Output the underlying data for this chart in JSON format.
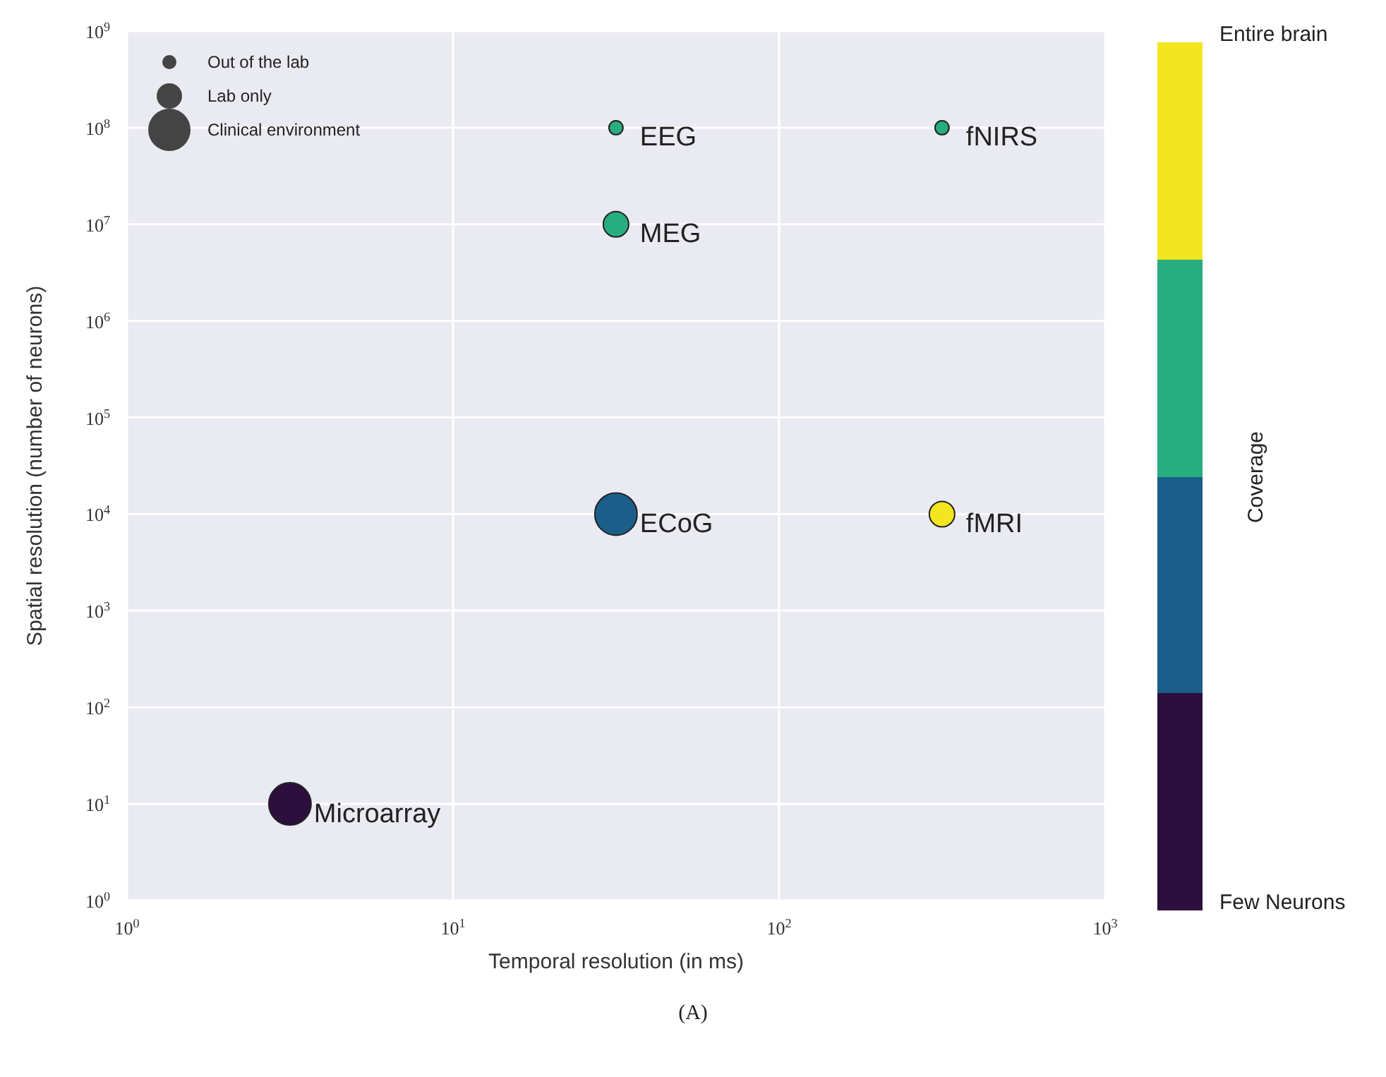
{
  "chart_data": {
    "type": "bubble",
    "xlabel": "Temporal resolution (in ms)",
    "ylabel": "Spatial resolution (number of neurons)",
    "clabel": "Coverage",
    "x": [
      3.16,
      31.6,
      31.6,
      31.6,
      316,
      316
    ],
    "values": [
      10,
      10000,
      100000000,
      10000000,
      100000000,
      10000
    ],
    "sizes": [
      1,
      1,
      0.11,
      0.36,
      0.11,
      0.36
    ],
    "colors": [
      "#2d0f3e",
      "#1b5e8a",
      "#27ad7f",
      "#27ad7f",
      "#27ad7f",
      "#f3e51e"
    ],
    "size_legend": [
      {
        "value": 0.11,
        "label": "Out of the lab"
      },
      {
        "value": 0.36,
        "label": "Lab only"
      },
      {
        "value": 1,
        "label": "Clinical environment"
      }
    ],
    "clim": [
      0,
      1
    ],
    "cticks": [
      {
        "value": 0,
        "label": "Few Neurons"
      },
      {
        "value": 1,
        "label": "Entire brain"
      }
    ],
    "log": "xy",
    "grid": true,
    "xlim": [
      1,
      1000
    ],
    "xticks": [
      {
        "value": 1,
        "label": "10$^{0}$"
      },
      {
        "value": 10,
        "label": "10$^{1}$"
      },
      {
        "value": 100,
        "label": "10$^{2}$"
      },
      {
        "value": 1000,
        "label": "10$^{3}$"
      }
    ],
    "ylim": [
      1,
      1000000000
    ],
    "yticks": [
      {
        "value": 1,
        "label": "10$^{0}$"
      },
      {
        "value": 10,
        "label": "10$^{1}$"
      },
      {
        "value": 100,
        "label": "10$^{2}$"
      },
      {
        "value": 1000,
        "label": "10$^{3}$"
      },
      {
        "value": 10000,
        "label": "10$^{4}$"
      },
      {
        "value": 100000,
        "label": "10$^{5}$"
      },
      {
        "value": 1000000,
        "label": "10$^{6}$"
      },
      {
        "value": 10000000,
        "label": "10$^{7}$"
      },
      {
        "value": 100000000,
        "label": "10$^{8}$"
      },
      {
        "value": 1000000000,
        "label": "10$^{9}$"
      }
    ],
    "annotations": [
      {
        "text": "Microarray",
        "x": 3.16,
        "y": 10
      },
      {
        "text": "ECoG",
        "x": 31.6,
        "y": 10000
      },
      {
        "text": "EEG",
        "x": 31.6,
        "y": 100000000
      },
      {
        "text": "MEG",
        "x": 31.6,
        "y": 10000000
      },
      {
        "text": "fNIRS",
        "x": 316,
        "y": 100000000
      },
      {
        "text": "fMRI",
        "x": 316,
        "y": 10000
      },
      "(A)"
    ]
  }
}
